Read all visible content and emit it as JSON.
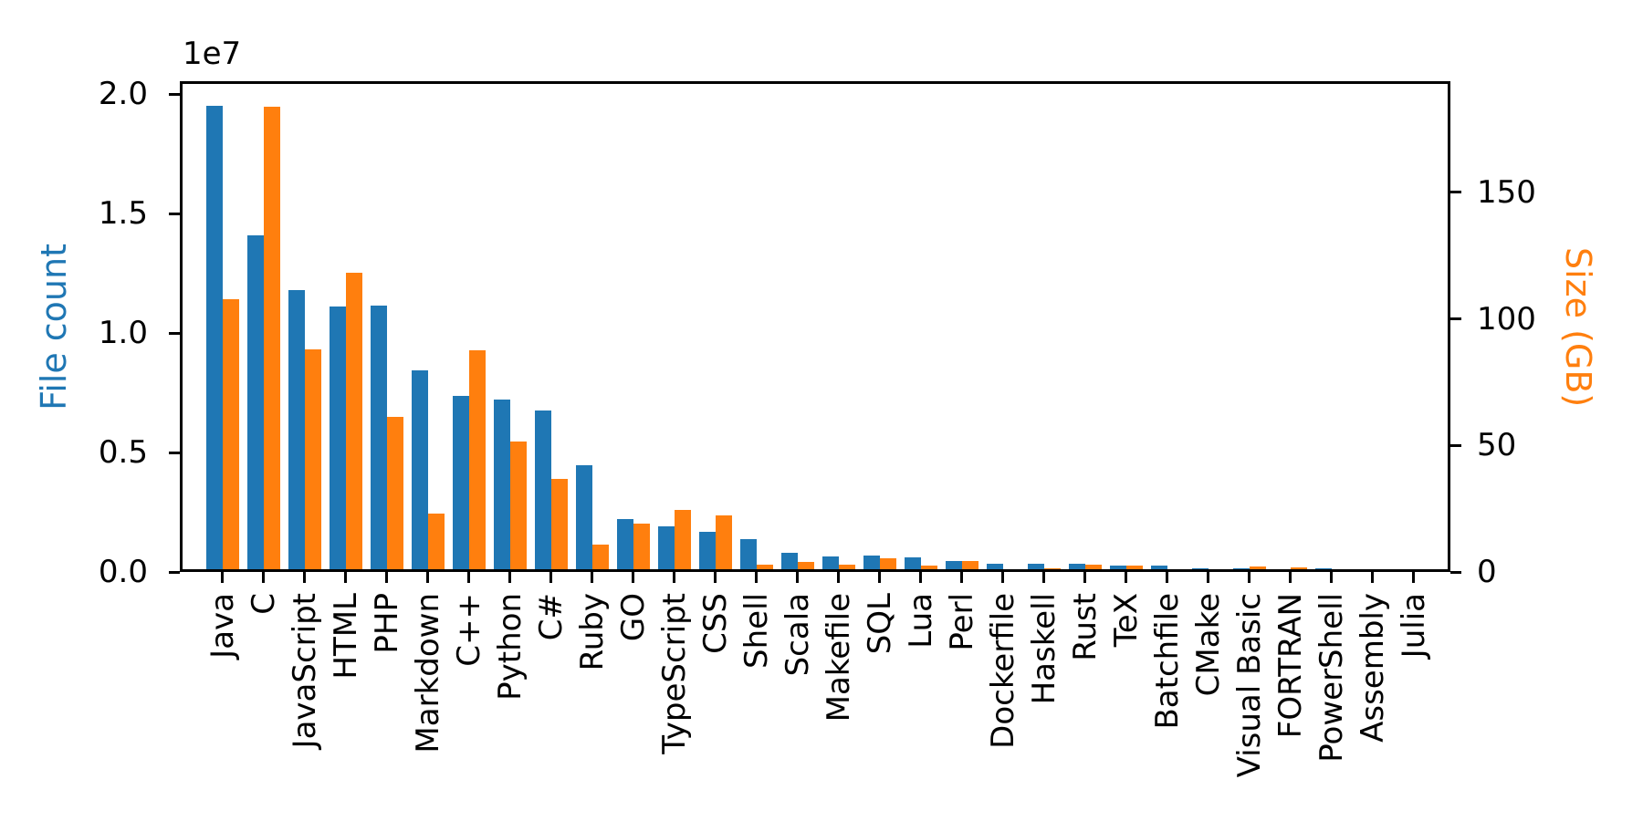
{
  "chart_data": {
    "type": "bar",
    "title": "",
    "categories": [
      "Java",
      "C",
      "JavaScript",
      "HTML",
      "PHP",
      "Markdown",
      "C++",
      "Python",
      "C#",
      "Ruby",
      "GO",
      "TypeScript",
      "CSS",
      "Shell",
      "Scala",
      "Makefile",
      "SQL",
      "Lua",
      "Perl",
      "Dockerfile",
      "Haskell",
      "Rust",
      "TeX",
      "Batchfile",
      "CMake",
      "Visual Basic",
      "FORTRAN",
      "PowerShell",
      "Assembly",
      "Julia"
    ],
    "series": [
      {
        "name": "File count",
        "axis": "left",
        "color": "#1f77b4",
        "values": [
          19500000,
          14100000,
          11800000,
          11100000,
          11150000,
          8420000,
          7380000,
          7210000,
          6770000,
          4450000,
          2230000,
          1910000,
          1690000,
          1370000,
          790000,
          660000,
          700000,
          600000,
          470000,
          340000,
          340000,
          340000,
          270000,
          270000,
          150000,
          150000,
          90000,
          150000,
          65000,
          50000
        ]
      },
      {
        "name": "Size (GB)",
        "axis": "right",
        "color": "#ff7f0e",
        "values": [
          107.8,
          183.8,
          87.8,
          118.1,
          61.3,
          23.1,
          87.7,
          51.7,
          36.7,
          10.8,
          19.0,
          24.4,
          22.5,
          3.0,
          3.9,
          3.0,
          5.4,
          2.4,
          4.5,
          0.7,
          1.6,
          3.0,
          2.5,
          0.3,
          0.25,
          2.0,
          1.8,
          0.4,
          0.4,
          0.3
        ]
      }
    ],
    "left_axis": {
      "label": "File count",
      "color": "#1f77b4",
      "offset_text": "1e7",
      "tick_labels": [
        "0.0",
        "0.5",
        "1.0",
        "1.5",
        "2.0"
      ],
      "tick_values": [
        0,
        5000000,
        10000000,
        15000000,
        20000000
      ],
      "ylim": [
        0,
        20500000
      ]
    },
    "right_axis": {
      "label": "Size (GB)",
      "color": "#ff7f0e",
      "tick_labels": [
        "0",
        "50",
        "100",
        "150"
      ],
      "tick_values": [
        0,
        50,
        100,
        150
      ],
      "ylim": [
        0,
        193.6
      ]
    },
    "xlabel": "",
    "grid": false,
    "legend": "none"
  }
}
